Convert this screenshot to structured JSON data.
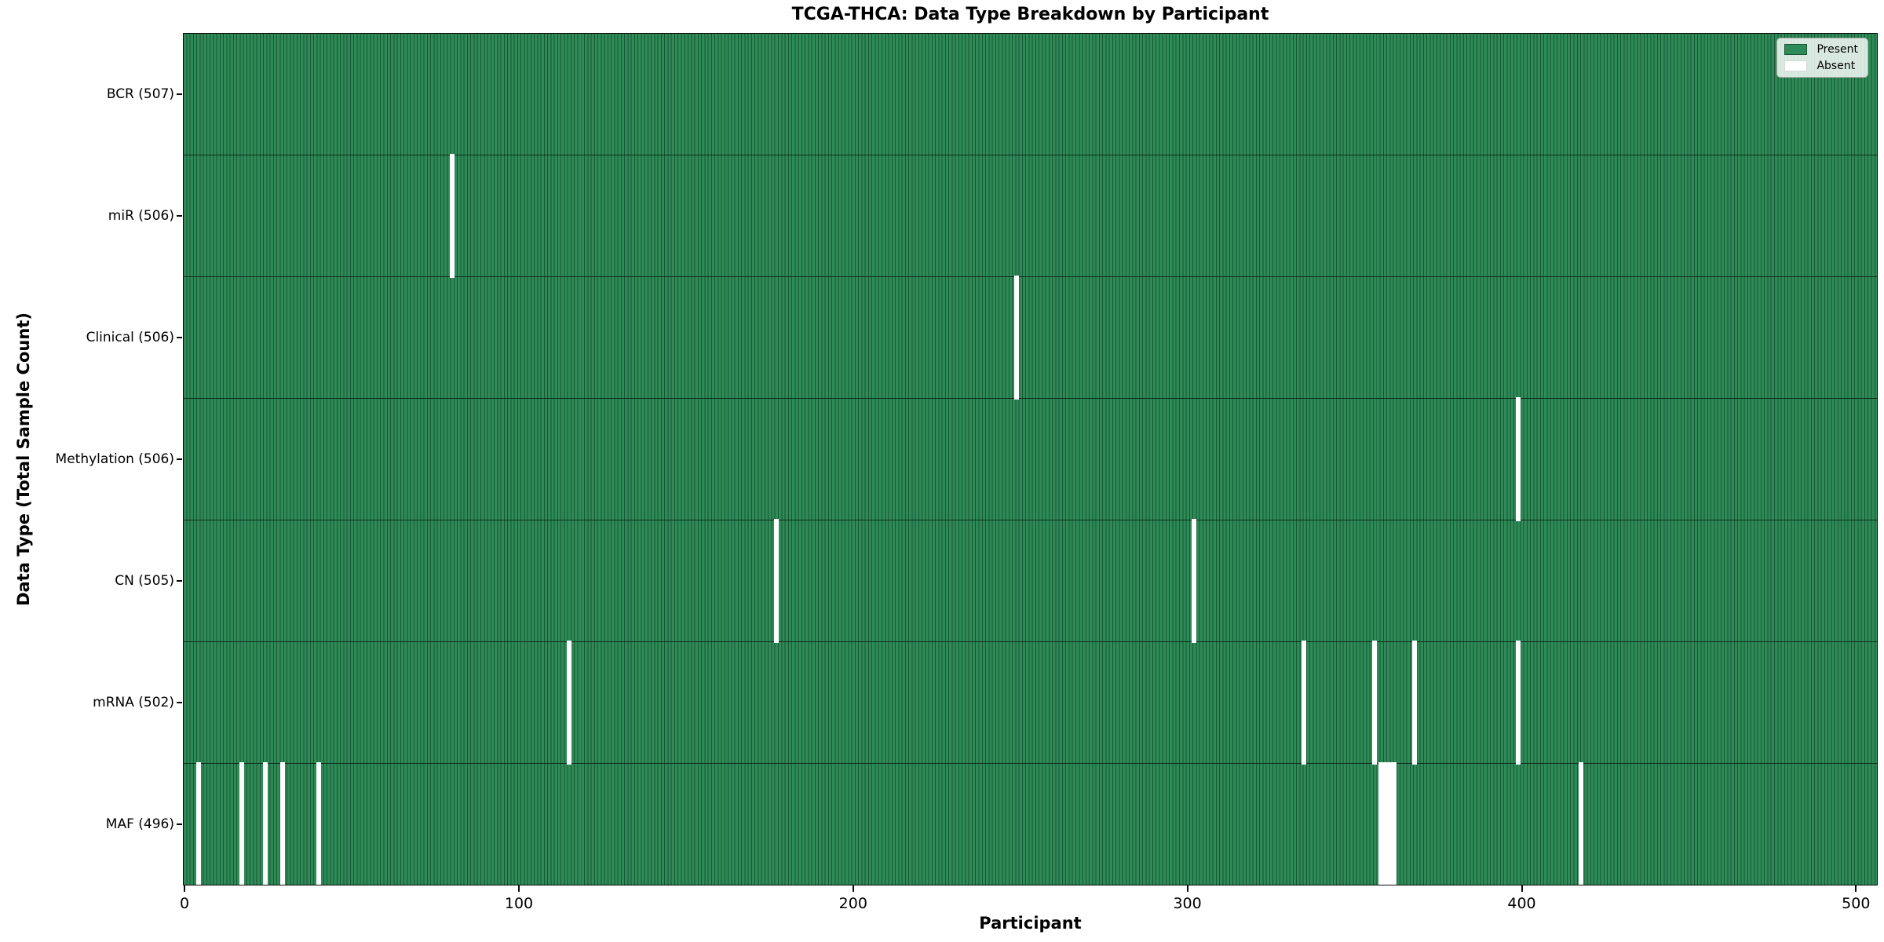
{
  "title": "TCGA-THCA: Data Type Breakdown by Participant",
  "xlabel": "Participant",
  "ylabel": "Data Type (Total Sample Count)",
  "legend": {
    "present_label": "Present",
    "absent_label": "Absent"
  },
  "colors": {
    "present_fill": "#2e8b57",
    "present_edge": "#1a5634",
    "absent_fill": "#ffffff",
    "row_divider": "#0d2e1b",
    "axis": "#0a0a0a"
  },
  "chart_data": {
    "type": "heatmap",
    "title": "TCGA-THCA: Data Type Breakdown by Participant",
    "xlabel": "Participant",
    "ylabel": "Data Type (Total Sample Count)",
    "legend_entries": [
      "Present",
      "Absent"
    ],
    "legend_position": "upper right",
    "total_participants": 507,
    "x_ticks": [
      0,
      100,
      200,
      300,
      400,
      500
    ],
    "x_range": [
      -0.5,
      506.5
    ],
    "cell_values": "present=1, absent=0; each row shows presence of that data type per participant",
    "rows": [
      {
        "label": "BCR (507)",
        "data_type": "BCR",
        "count": 507,
        "absent_participants": []
      },
      {
        "label": "miR (506)",
        "data_type": "miR",
        "count": 506,
        "absent_participants": [
          80
        ]
      },
      {
        "label": "Clinical (506)",
        "data_type": "Clinical",
        "count": 506,
        "absent_participants": [
          249
        ]
      },
      {
        "label": "Methylation (506)",
        "data_type": "Methylation",
        "count": 506,
        "absent_participants": [
          399
        ]
      },
      {
        "label": "CN (505)",
        "data_type": "CN",
        "count": 505,
        "absent_participants": [
          177,
          302
        ]
      },
      {
        "label": "mRNA (502)",
        "data_type": "mRNA",
        "count": 502,
        "absent_participants": [
          115,
          335,
          356,
          368,
          399
        ]
      },
      {
        "label": "MAF (496)",
        "data_type": "MAF",
        "count": 496,
        "absent_participants": [
          4,
          17,
          24,
          29,
          40,
          358,
          359,
          360,
          361,
          362,
          418
        ]
      }
    ]
  }
}
